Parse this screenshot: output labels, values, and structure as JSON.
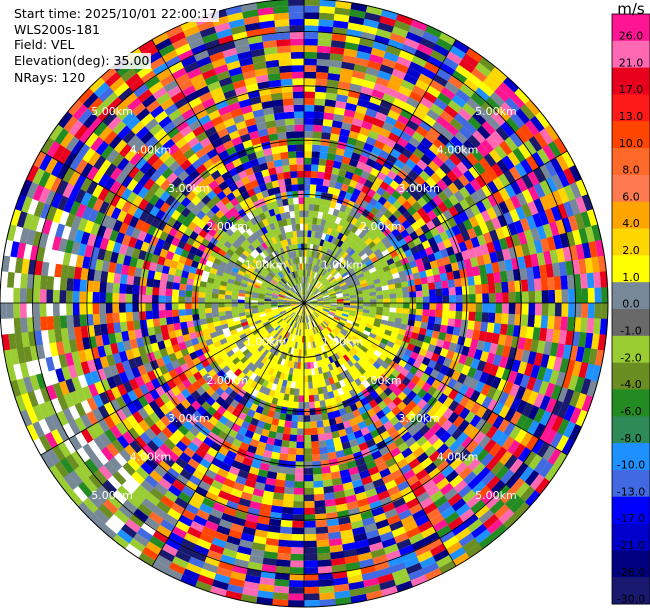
{
  "info": {
    "start_time": "Start time: 2025/10/01 22:00:17",
    "site": "WLS200s-181",
    "field": "Field: VEL",
    "elevation": "Elevation(deg): 35.00",
    "nrays": "NRays: 120"
  },
  "chart_data": {
    "type": "heatmap",
    "projection": "polar PPI",
    "rays": 120,
    "range_rings_km": [
      1,
      2,
      3,
      4,
      5
    ],
    "ring_labels": [
      "1.00km",
      "2.00km",
      "3.00km",
      "4.00km",
      "5.00km"
    ],
    "max_range_km": 5.6,
    "colorbar": {
      "unit": "m/s",
      "ticks": [
        "26.0",
        "21.0",
        "17.0",
        "13.0",
        "10.0",
        "8.0",
        "6.0",
        "4.0",
        "2.0",
        "1.0",
        "0.0",
        "-1.0",
        "-2.0",
        "-4.0",
        "-6.0",
        "-8.0",
        "-10.0",
        "-13.0",
        "-17.0",
        "-21.0",
        "-26.0",
        "-30.0"
      ],
      "colors": [
        "#ff1493",
        "#ff69b4",
        "#e8001c",
        "#ff1a1a",
        "#ff4500",
        "#ff6a2a",
        "#ff7a50",
        "#ffa500",
        "#ffd700",
        "#ffff00",
        "#778899",
        "#696969",
        "#9acd32",
        "#6b8e23",
        "#228b22",
        "#2e8b57",
        "#1e90ff",
        "#4169e1",
        "#0000ff",
        "#0000cd",
        "#000080",
        "#191970"
      ]
    },
    "inner_region_note_km": 2.0
  }
}
